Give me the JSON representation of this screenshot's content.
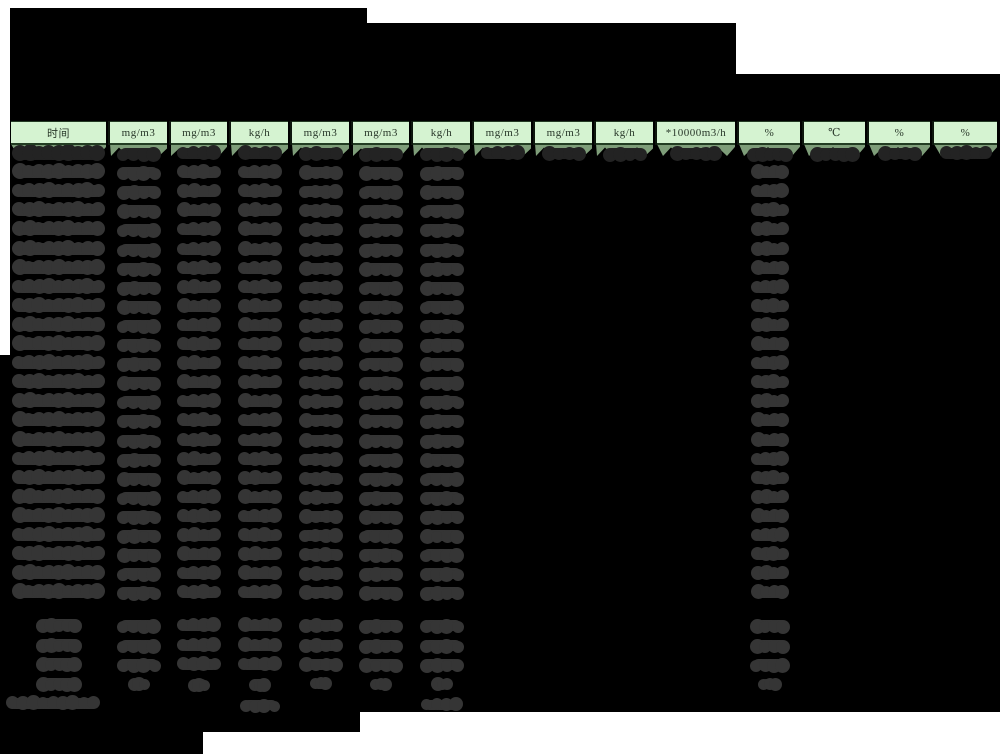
{
  "header": {
    "columns": [
      {
        "label": "时间"
      },
      {
        "label": "mg/m3"
      },
      {
        "label": "mg/m3"
      },
      {
        "label": "kg/h"
      },
      {
        "label": "mg/m3"
      },
      {
        "label": "mg/m3"
      },
      {
        "label": "kg/h"
      },
      {
        "label": "mg/m3"
      },
      {
        "label": "mg/m3"
      },
      {
        "label": "kg/h"
      },
      {
        "label": "*10000m3/h"
      },
      {
        "label": "%"
      },
      {
        "label": "℃"
      },
      {
        "label": "%"
      },
      {
        "label": "%"
      }
    ]
  },
  "redaction": {
    "data_rows": 24,
    "summary_rows": 4,
    "footer_rows": 1,
    "note": "title, timestamps and all cell values are blacked out"
  },
  "colors": {
    "page_bg": "#ffffff",
    "mask": "#000000",
    "header_bg": "#d5f3d1",
    "header_divider": "#0d160d",
    "header_text": "#29382a",
    "row_green": "#7e9d79",
    "blob": "#353535",
    "blob_first_row": "#232323"
  }
}
